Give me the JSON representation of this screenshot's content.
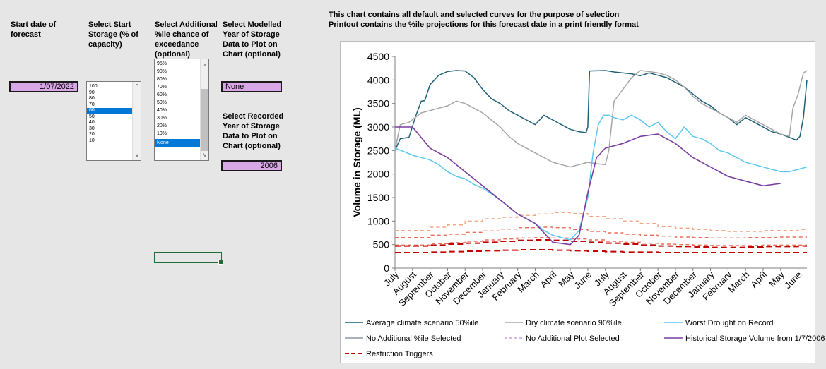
{
  "headers": {
    "start_date": "Start date of forecast",
    "start_storage": "Select Start Storage (% of capacity)",
    "additional_pct": "Select Additional %ile chance of exceedance (optional)",
    "modelled_year": "Select Modelled Year of Storage Data to Plot on Chart (optional)",
    "recorded_year": "Select Recorded Year of Storage Data to Plot on Chart (optional)"
  },
  "inputs": {
    "start_date_value": "1/07/2022",
    "modelled_year_value": "None",
    "recorded_year_value": "2006"
  },
  "storage_list": {
    "items": [
      "100",
      "90",
      "80",
      "70",
      "60",
      "50",
      "40",
      "30",
      "20",
      "10"
    ],
    "selected": "60"
  },
  "pct_list": {
    "items": [
      "95%",
      "90%",
      "80%",
      "70%",
      "60%",
      "50%",
      "40%",
      "30%",
      "20%",
      "10%",
      "None"
    ],
    "selected": "None"
  },
  "notes": {
    "line1": "This chart contains all default and selected curves for the purpose of selection",
    "line2": "Printout contains the %ile projections for this forecast date in a print friendly format"
  },
  "chart_data": {
    "type": "line",
    "ylabel": "Volume in Storage (ML)",
    "ylim": [
      0,
      4500
    ],
    "yticks": [
      0,
      500,
      1000,
      1500,
      2000,
      2500,
      3000,
      3500,
      4000,
      4500
    ],
    "x_labels": [
      "July",
      "August",
      "September",
      "October",
      "November",
      "December",
      "January",
      "February",
      "March",
      "April",
      "May",
      "June",
      "July",
      "August",
      "September",
      "October",
      "November",
      "December",
      "January",
      "February",
      "March",
      "April",
      "May",
      "June"
    ],
    "grid": false,
    "legend_position": "bottom",
    "colors": {
      "avg": "#1f5f7a",
      "dry": "#a6a6a6",
      "worst": "#5bc8f0",
      "no_pct": "#8c9aa8",
      "no_plot": "#c9a0dc",
      "historical": "#7b3fa0",
      "trigger_dark": "#c00000",
      "trigger_mid": "#e8705a",
      "trigger_light": "#f4a582"
    },
    "series": [
      {
        "key": "avg",
        "name": "Average climate scenario 50%ile",
        "x": [
          0,
          0.3,
          0.8,
          1.2,
          1.5,
          1.7,
          2,
          2.5,
          3,
          3.5,
          4,
          4.5,
          5,
          5.5,
          6,
          6.5,
          7,
          7.5,
          8,
          8.5,
          9,
          9.5,
          10,
          10.5,
          10.9,
          11,
          11.1,
          12,
          12.5,
          13,
          13.5,
          14,
          14.5,
          15,
          15.5,
          16,
          16.5,
          17,
          17.5,
          18,
          18.5,
          19,
          19.5,
          20,
          20.5,
          21,
          21.5,
          22,
          22.5,
          22.9,
          23.1,
          23.3,
          23.5
        ],
        "y": [
          2500,
          2750,
          2780,
          3250,
          3550,
          3560,
          3900,
          4100,
          4180,
          4200,
          4190,
          4050,
          3800,
          3600,
          3500,
          3350,
          3250,
          3150,
          3050,
          3250,
          3150,
          3050,
          2950,
          2900,
          2880,
          3000,
          4190,
          4200,
          4170,
          4150,
          4130,
          4090,
          4150,
          4100,
          4050,
          3950,
          3850,
          3700,
          3550,
          3450,
          3300,
          3200,
          3050,
          3200,
          3100,
          3000,
          2900,
          2850,
          2780,
          2720,
          2800,
          3200,
          4000
        ]
      },
      {
        "key": "dry",
        "name": "Dry climate scenario 90%ile",
        "x": [
          0,
          0.3,
          0.8,
          1.5,
          2,
          2.5,
          3,
          3.5,
          4,
          4.5,
          5,
          5.5,
          6,
          6.5,
          7,
          7.5,
          8,
          8.5,
          9,
          9.5,
          10,
          10.5,
          11,
          11.5,
          12,
          12.2,
          12.5,
          13,
          13.5,
          14,
          14.5,
          15,
          15.5,
          16,
          16.5,
          17,
          17.5,
          18,
          18.5,
          19,
          19.5,
          20,
          20.5,
          21,
          21.5,
          22,
          22.5,
          22.7,
          23,
          23.3,
          23.5
        ],
        "y": [
          2500,
          3050,
          3100,
          3300,
          3350,
          3400,
          3450,
          3550,
          3500,
          3400,
          3300,
          3150,
          3000,
          2800,
          2650,
          2550,
          2450,
          2350,
          2250,
          2200,
          2150,
          2200,
          2250,
          2220,
          2200,
          2500,
          3550,
          3800,
          4050,
          4200,
          4180,
          4150,
          4100,
          4000,
          3850,
          3650,
          3500,
          3400,
          3300,
          3200,
          3100,
          3250,
          3150,
          3050,
          2950,
          2850,
          2800,
          3400,
          3700,
          4150,
          4200
        ]
      },
      {
        "key": "worst",
        "name": "Worst Drought on Record",
        "x": [
          0,
          0.5,
          1,
          1.5,
          2,
          2.5,
          3,
          3.5,
          4,
          4.5,
          5,
          5.5,
          6,
          6.5,
          7,
          7.5,
          8,
          8.5,
          9,
          9.5,
          10,
          10.5,
          11,
          11.3,
          11.6,
          11.9,
          12.2,
          12.5,
          13,
          13.5,
          14,
          14.5,
          15,
          15.5,
          16,
          16.5,
          17,
          17.5,
          18,
          18.5,
          19,
          19.5,
          20,
          20.5,
          21,
          21.5,
          22,
          22.5,
          23,
          23.5
        ],
        "y": [
          2550,
          2480,
          2400,
          2350,
          2300,
          2200,
          2050,
          1950,
          1900,
          1780,
          1700,
          1580,
          1450,
          1300,
          1150,
          1050,
          950,
          800,
          700,
          650,
          600,
          800,
          1500,
          2450,
          3050,
          3250,
          3250,
          3200,
          3150,
          3250,
          3150,
          3000,
          3100,
          2900,
          2750,
          3000,
          2800,
          2750,
          2650,
          2500,
          2450,
          2350,
          2250,
          2200,
          2150,
          2100,
          2050,
          2050,
          2100,
          2150
        ]
      },
      {
        "key": "historical",
        "name": "Historical Storage Volume from 1/7/2006",
        "x": [
          0,
          1,
          2,
          3,
          4,
          5,
          6,
          7,
          8,
          9,
          10,
          10.5,
          11,
          11.5,
          12,
          13,
          14,
          15,
          16,
          17,
          18,
          19,
          20,
          21,
          22
        ],
        "y": [
          3000,
          3000,
          2550,
          2350,
          2050,
          1750,
          1450,
          1150,
          950,
          550,
          500,
          700,
          1600,
          2350,
          2550,
          2650,
          2800,
          2850,
          2650,
          2350,
          2150,
          1950,
          1850,
          1750,
          1800
        ]
      }
    ],
    "triggers": [
      {
        "color_key": "trigger_light",
        "values": [
          800,
          800,
          870,
          920,
          1000,
          1050,
          1080,
          1120,
          1150,
          1180,
          1160,
          1100,
          1050,
          1000,
          950,
          880,
          850,
          820,
          800,
          780,
          780,
          800,
          800,
          820
        ]
      },
      {
        "color_key": "trigger_mid",
        "values": [
          650,
          650,
          700,
          720,
          760,
          790,
          830,
          860,
          870,
          860,
          820,
          780,
          750,
          720,
          700,
          680,
          660,
          650,
          640,
          640,
          650,
          650,
          660,
          660
        ]
      },
      {
        "color_key": "trigger_mid",
        "values": [
          490,
          490,
          520,
          540,
          570,
          600,
          620,
          640,
          650,
          640,
          620,
          600,
          570,
          550,
          530,
          510,
          500,
          490,
          480,
          480,
          480,
          490,
          490,
          490
        ]
      },
      {
        "color_key": "trigger_dark",
        "values": [
          470,
          470,
          490,
          510,
          530,
          550,
          570,
          590,
          600,
          590,
          570,
          550,
          530,
          510,
          490,
          470,
          460,
          450,
          440,
          440,
          450,
          460,
          460,
          470
        ]
      },
      {
        "color_key": "trigger_dark",
        "values": [
          330,
          330,
          340,
          350,
          360,
          370,
          380,
          390,
          390,
          380,
          370,
          360,
          350,
          340,
          340,
          330,
          330,
          330,
          330,
          330,
          330,
          330,
          330,
          330
        ]
      }
    ],
    "legend": [
      {
        "key": "avg",
        "label": "Average climate scenario 50%ile",
        "style": "solid"
      },
      {
        "key": "dry",
        "label": "Dry climate scenario 90%ile",
        "style": "solid"
      },
      {
        "key": "worst",
        "label": "Worst Drought on Record",
        "style": "solid"
      },
      {
        "key": "no_pct",
        "label": "No Additional %ile Selected",
        "style": "solid"
      },
      {
        "key": "no_plot",
        "label": "No Additional Plot Selected",
        "style": "dashed"
      },
      {
        "key": "historical",
        "label": "Historical Storage Volume from 1/7/2006",
        "style": "solid"
      },
      {
        "key": "trigger_dark",
        "label": "Restriction Triggers",
        "style": "dashed"
      }
    ]
  }
}
